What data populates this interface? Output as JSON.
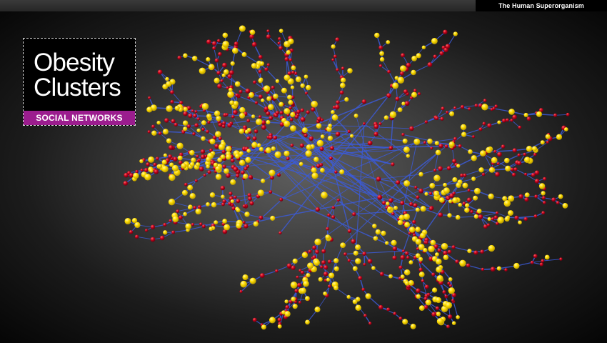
{
  "header": {
    "site_title": "The Human Superorganism"
  },
  "title_card": {
    "title_line1": "Obesity",
    "title_line2": "Clusters",
    "category": "SOCIAL NETWORKS"
  },
  "network": {
    "colors": {
      "edge": "#3c5bd6",
      "node_obese": "#ffdd00",
      "node_non_obese": "#c3001a"
    }
  }
}
